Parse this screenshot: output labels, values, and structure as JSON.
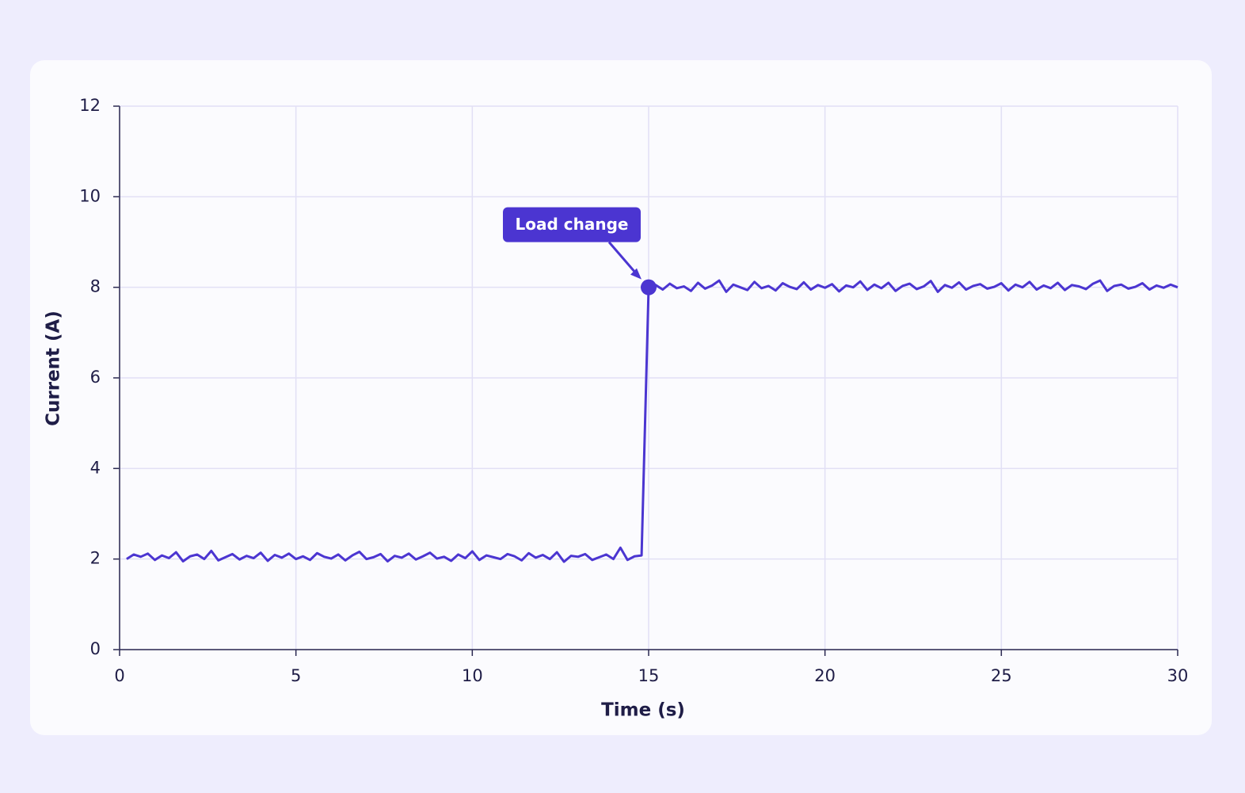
{
  "chart_data": {
    "type": "line",
    "xlabel": "Time (s)",
    "ylabel": "Current (A)",
    "xlim": [
      0,
      30
    ],
    "xticks": [
      0,
      5,
      10,
      15,
      20,
      25,
      30
    ],
    "ylim": [
      0,
      12
    ],
    "yticks": [
      0,
      2,
      4,
      6,
      8,
      10,
      12
    ],
    "grid": true,
    "x": [
      0.2,
      0.4,
      0.6,
      0.8,
      1,
      1.2,
      1.4,
      1.6,
      1.8,
      2,
      2.2,
      2.4,
      2.6,
      2.8,
      3,
      3.2,
      3.4,
      3.6,
      3.8,
      4,
      4.2,
      4.4,
      4.6,
      4.8,
      5,
      5.2,
      5.4,
      5.6,
      5.8,
      6,
      6.2,
      6.4,
      6.6,
      6.8,
      7,
      7.2,
      7.4,
      7.6,
      7.8,
      8,
      8.2,
      8.4,
      8.6,
      8.8,
      9,
      9.2,
      9.4,
      9.6,
      9.8,
      10,
      10.2,
      10.4,
      10.6,
      10.8,
      11,
      11.2,
      11.4,
      11.6,
      11.8,
      12,
      12.2,
      12.4,
      12.6,
      12.8,
      13,
      13.2,
      13.4,
      13.6,
      13.8,
      14,
      14.2,
      14.4,
      14.6,
      14.8,
      15,
      15.2,
      15.4,
      15.6,
      15.8,
      16,
      16.2,
      16.4,
      16.6,
      16.8,
      17,
      17.2,
      17.4,
      17.6,
      17.8,
      18,
      18.2,
      18.4,
      18.6,
      18.8,
      19,
      19.2,
      19.4,
      19.6,
      19.8,
      20,
      20.2,
      20.4,
      20.6,
      20.8,
      21,
      21.2,
      21.4,
      21.6,
      21.8,
      22,
      22.2,
      22.4,
      22.6,
      22.8,
      23,
      23.2,
      23.4,
      23.6,
      23.8,
      24,
      24.2,
      24.4,
      24.6,
      24.8,
      25,
      25.2,
      25.4,
      25.6,
      25.8,
      26,
      26.2,
      26.4,
      26.6,
      26.8,
      27,
      27.2,
      27.4,
      27.6,
      27.8,
      28,
      28.2,
      28.4,
      28.6,
      28.8,
      29,
      29.2,
      29.4,
      29.6,
      29.8,
      30
    ],
    "series": [
      {
        "name": "Current",
        "color": "#4b35d1",
        "values": [
          2.0,
          2.1,
          2.05,
          2.12,
          1.98,
          2.08,
          2.02,
          2.15,
          1.95,
          2.06,
          2.1,
          2.0,
          2.18,
          1.97,
          2.04,
          2.11,
          1.99,
          2.07,
          2.02,
          2.14,
          1.96,
          2.09,
          2.03,
          2.12,
          2.0,
          2.06,
          1.98,
          2.13,
          2.05,
          2.01,
          2.1,
          1.97,
          2.08,
          2.16,
          2.0,
          2.04,
          2.11,
          1.95,
          2.07,
          2.03,
          2.12,
          1.99,
          2.06,
          2.14,
          2.01,
          2.05,
          1.96,
          2.1,
          2.02,
          2.17,
          1.98,
          2.08,
          2.04,
          2.0,
          2.11,
          2.06,
          1.97,
          2.13,
          2.03,
          2.09,
          2.0,
          2.15,
          1.94,
          2.07,
          2.05,
          2.11,
          1.98,
          2.04,
          2.1,
          2.0,
          2.25,
          1.98,
          2.06,
          2.08,
          8.0,
          8.05,
          7.95,
          8.08,
          7.98,
          8.02,
          7.92,
          8.1,
          7.97,
          8.04,
          8.15,
          7.9,
          8.06,
          8.0,
          7.94,
          8.12,
          7.98,
          8.03,
          7.93,
          8.09,
          8.01,
          7.96,
          8.11,
          7.95,
          8.05,
          7.99,
          8.07,
          7.91,
          8.04,
          8.0,
          8.13,
          7.94,
          8.06,
          7.98,
          8.1,
          7.92,
          8.03,
          8.08,
          7.96,
          8.02,
          8.14,
          7.9,
          8.05,
          7.99,
          8.11,
          7.95,
          8.03,
          8.07,
          7.97,
          8.01,
          8.09,
          7.93,
          8.06,
          8.0,
          8.12,
          7.95,
          8.04,
          7.98,
          8.1,
          7.94,
          8.05,
          8.02,
          7.96,
          8.08,
          8.15,
          7.92,
          8.03,
          8.06,
          7.97,
          8.01,
          8.09,
          7.95,
          8.04,
          7.99,
          8.06,
          8.0
        ]
      }
    ],
    "annotations": [
      {
        "text": "Load change",
        "x": 15,
        "y": 8
      }
    ]
  }
}
